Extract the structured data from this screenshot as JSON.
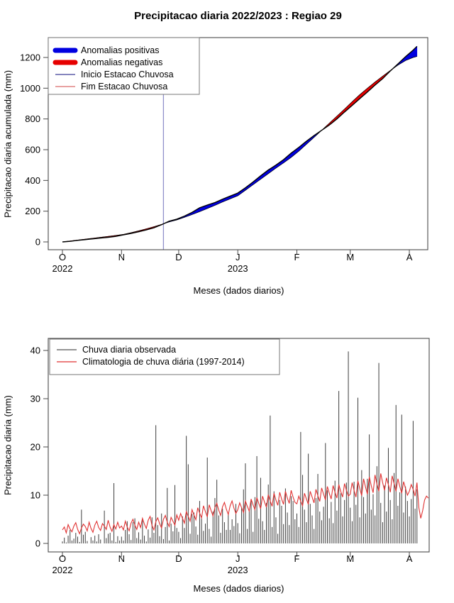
{
  "figure": {
    "background": "#ffffff"
  },
  "chart_data": [
    {
      "type": "line",
      "title": "Precipitacao diaria 2022/2023 : Regiao 29",
      "xlabel": "Meses (dados diarios)",
      "ylabel": "Precipitacao diaria acumulada (mm)",
      "ylim": [
        0,
        1300
      ],
      "yticks": [
        0,
        200,
        400,
        600,
        800,
        1000,
        1200
      ],
      "x_month_labels": [
        "O",
        "N",
        "D",
        "J",
        "F",
        "M",
        "A"
      ],
      "x_month_days": [
        0,
        31,
        61,
        92,
        123,
        151,
        182
      ],
      "year_labels": [
        {
          "text": "2022",
          "day": 0
        },
        {
          "text": "2023",
          "day": 92
        }
      ],
      "legend_position": "top-left",
      "legend": [
        {
          "label": "Anomalias positivas",
          "color": "#0000e0",
          "thick": true
        },
        {
          "label": "Anomalias negativas",
          "color": "#e60000",
          "thick": true
        },
        {
          "label": "Inicio Estacao Chuvosa",
          "color": "#3c3c96",
          "thick": false
        },
        {
          "label": "Fim Estacao Chuvosa",
          "color": "#d96b6b",
          "thick": false
        }
      ],
      "rainy_season_start_day": 53,
      "colors": {
        "positive_fill": "#0000e0",
        "negative_fill": "#e60000",
        "observed_line": "#000000",
        "climatology_line": "#000000",
        "season_start_line": "#9191ca",
        "frame": "#4a4a4a"
      },
      "series": {
        "x_days": [
          0,
          4,
          8,
          12,
          16,
          20,
          24,
          28,
          32,
          36,
          40,
          44,
          48,
          52,
          56,
          60,
          64,
          68,
          72,
          76,
          80,
          84,
          88,
          92,
          96,
          100,
          104,
          108,
          112,
          116,
          120,
          124,
          128,
          132,
          136,
          140,
          144,
          148,
          152,
          156,
          160,
          164,
          168,
          172,
          176,
          180,
          184,
          186
        ],
        "observed_cumulative": [
          0,
          4,
          10,
          15,
          20,
          25,
          30,
          36,
          46,
          55,
          66,
          78,
          92,
          112,
          135,
          148,
          168,
          192,
          222,
          240,
          256,
          278,
          298,
          318,
          352,
          390,
          430,
          468,
          500,
          535,
          578,
          615,
          655,
          692,
          726,
          760,
          800,
          845,
          888,
          932,
          975,
          1020,
          1062,
          1112,
          1158,
          1205,
          1248,
          1272
        ],
        "climatology_cumulative": [
          0,
          6,
          12,
          18,
          24,
          30,
          36,
          42,
          49,
          60,
          72,
          85,
          99,
          114,
          130,
          143,
          160,
          178,
          197,
          217,
          238,
          260,
          280,
          300,
          336,
          372,
          408,
          444,
          480,
          514,
          550,
          590,
          635,
          680,
          726,
          772,
          818,
          864,
          912,
          958,
          1000,
          1040,
          1078,
          1115,
          1150,
          1180,
          1200,
          1207
        ]
      }
    },
    {
      "type": "bar",
      "title": "",
      "xlabel": "Meses (dados diarios)",
      "ylabel": "Precipitacao diaria (mm)",
      "ylim": [
        0,
        41
      ],
      "yticks": [
        0,
        10,
        20,
        30,
        40
      ],
      "x_month_labels": [
        "O",
        "N",
        "D",
        "J",
        "F",
        "M",
        "A"
      ],
      "x_month_days": [
        0,
        31,
        61,
        92,
        123,
        151,
        182
      ],
      "year_labels": [
        {
          "text": "2022",
          "day": 0
        },
        {
          "text": "2023",
          "day": 92
        }
      ],
      "legend_position": "top-left",
      "legend": [
        {
          "label": "Chuva diaria observada",
          "color": "#555555",
          "thick": false
        },
        {
          "label": "Climatologia de chuva diária (1997-2014)",
          "color": "#e03232",
          "thick": false
        }
      ],
      "colors": {
        "bar": "#3d3d3d",
        "climatology_line": "#e03232",
        "frame": "#4a4a4a"
      },
      "series": {
        "observed_daily": [
          0.4,
          1.2,
          0.2,
          1.6,
          2.8,
          0.6,
          1.0,
          2.2,
          1.4,
          0.3,
          7.0,
          1.8,
          2.4,
          0.5,
          0.0,
          1.3,
          0.6,
          1.6,
          0.4,
          1.9,
          0.8,
          0.0,
          6.8,
          1.1,
          2.0,
          2.2,
          0.6,
          12.5,
          0.3,
          1.5,
          0.6,
          1.4,
          0.6,
          2.8,
          4.6,
          1.9,
          0.7,
          4.4,
          5.2,
          1.1,
          2.3,
          0.8,
          4.8,
          1.6,
          0.4,
          2.9,
          1.2,
          5.4,
          2.2,
          24.5,
          3.8,
          1.5,
          6.2,
          0.9,
          3.4,
          11.5,
          0.6,
          4.1,
          2.5,
          12.1,
          3.2,
          2.4,
          1.1,
          5.6,
          3.2,
          22.3,
          16.4,
          2.0,
          6.1,
          6.4,
          3.5,
          1.8,
          8.8,
          5.2,
          2.6,
          4.1,
          17.8,
          3.0,
          1.4,
          6.6,
          9.4,
          13.2,
          5.8,
          2.2,
          7.2,
          4.4,
          2.8,
          6.1,
          2.8,
          5.0,
          3.6,
          8.2,
          4.2,
          2.1,
          7.4,
          11.2,
          16.6,
          3.0,
          6.8,
          9.2,
          2.4,
          9.6,
          18.1,
          5.1,
          13.6,
          4.6,
          2.8,
          8.4,
          12.2,
          26.5,
          3.4,
          10.8,
          5.4,
          2.0,
          9.0,
          7.8,
          4.0,
          11.4,
          6.4,
          3.8,
          9.8,
          8.8,
          5.0,
          6.2,
          3.4,
          23.1,
          14.2,
          7.0,
          4.4,
          18.6,
          8.2,
          5.8,
          3.0,
          9.4,
          14.4,
          6.6,
          4.8,
          7.6,
          20.8,
          11.0,
          5.2,
          8.6,
          4.2,
          13.0,
          6.8,
          31.6,
          10.4,
          5.6,
          9.0,
          12.6,
          39.8,
          7.4,
          4.6,
          12.8,
          8.0,
          30.2,
          5.4,
          15.2,
          9.6,
          6.2,
          13.4,
          22.6,
          7.0,
          10.2,
          5.8,
          16.0,
          37.4,
          8.4,
          4.4,
          12.0,
          6.6,
          19.8,
          9.0,
          5.0,
          14.6,
          28.7,
          7.8,
          10.6,
          26.7,
          6.4,
          11.8,
          8.8,
          5.6,
          9.2,
          25.4,
          7.2,
          11.2,
          0,
          0,
          0,
          0,
          0,
          0
        ],
        "climatology_daily": [
          2.8,
          3.4,
          2.2,
          3.9,
          3.0,
          2.4,
          3.6,
          4.3,
          2.9,
          2.0,
          3.2,
          4.0,
          3.5,
          2.6,
          4.4,
          3.1,
          2.3,
          3.8,
          4.6,
          3.3,
          2.7,
          4.1,
          3.6,
          2.9,
          4.8,
          3.4,
          2.5,
          3.9,
          3.0,
          4.4,
          3.2,
          3.6,
          2.8,
          4.6,
          3.4,
          2.6,
          4.2,
          5.0,
          3.8,
          2.9,
          4.4,
          3.3,
          5.2,
          4.0,
          3.1,
          4.8,
          5.6,
          3.7,
          2.8,
          4.5,
          5.3,
          4.1,
          3.2,
          5.0,
          5.8,
          4.4,
          3.5,
          5.4,
          4.6,
          3.8,
          5.9,
          4.8,
          6.2,
          5.2,
          4.2,
          6.6,
          5.6,
          4.6,
          7.0,
          5.9,
          4.9,
          7.4,
          6.3,
          5.3,
          7.8,
          6.6,
          5.5,
          8.0,
          6.8,
          5.7,
          7.4,
          8.3,
          6.9,
          5.8,
          7.6,
          8.5,
          7.1,
          6.0,
          7.8,
          8.8,
          7.3,
          6.2,
          7.0,
          8.4,
          7.4,
          6.4,
          8.8,
          7.7,
          6.7,
          9.2,
          8.0,
          7.0,
          9.5,
          8.3,
          7.2,
          9.8,
          8.6,
          7.5,
          10.1,
          8.8,
          7.7,
          10.4,
          9.0,
          7.9,
          10.6,
          9.2,
          8.1,
          10.8,
          9.4,
          8.3,
          11.0,
          9.6,
          8.5,
          8.2,
          9.8,
          8.8,
          7.8,
          10.4,
          9.2,
          8.1,
          10.8,
          9.6,
          8.4,
          11.2,
          9.9,
          8.7,
          11.5,
          10.2,
          9.0,
          11.8,
          10.4,
          9.2,
          12.0,
          10.6,
          9.4,
          12.2,
          10.8,
          9.6,
          12.4,
          11.0,
          9.8,
          10.2,
          12.6,
          11.0,
          9.6,
          13.0,
          11.4,
          9.9,
          13.4,
          11.7,
          10.2,
          13.8,
          12.0,
          10.5,
          14.2,
          12.3,
          10.8,
          14.5,
          12.6,
          11.0,
          13.6,
          12.2,
          10.6,
          14.0,
          12.4,
          10.8,
          13.4,
          11.8,
          10.4,
          12.8,
          11.4,
          10.0,
          10.8,
          12.2,
          11.2,
          9.8,
          12.6,
          7.4,
          5.2,
          6.8,
          9.0,
          9.8,
          9.4
        ]
      }
    }
  ]
}
